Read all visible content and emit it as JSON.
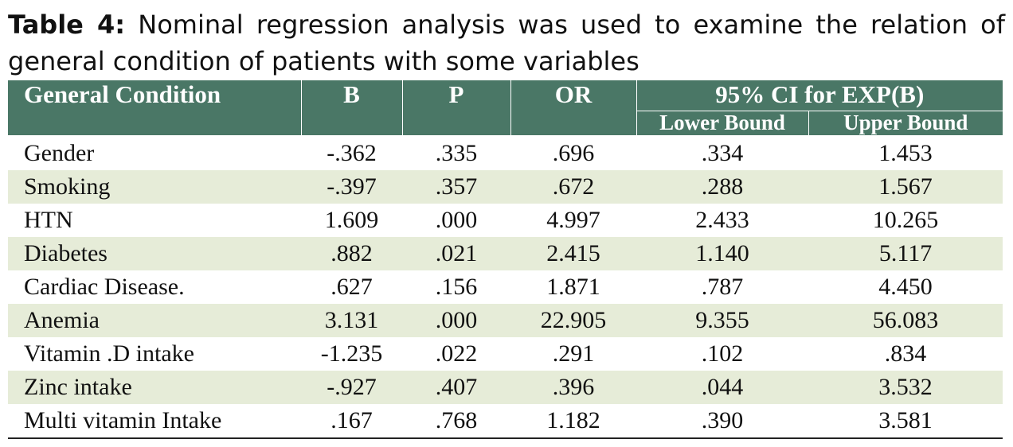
{
  "caption": {
    "label": "Table 4:",
    "text": "Nominal regression analysis was used to examine the relation of general condition of patients with some variables"
  },
  "table": {
    "headers": {
      "condition": "General Condition",
      "b": "B",
      "p": "P",
      "or": "OR",
      "ci": "95% CI for EXP(B)",
      "lower": "Lower Bound",
      "upper": "Upper Bound"
    },
    "rows": [
      {
        "name": "Gender",
        "b": "-.362",
        "p": ".335",
        "or": ".696",
        "lower": ".334",
        "upper": "1.453"
      },
      {
        "name": "Smoking",
        "b": "-.397",
        "p": ".357",
        "or": ".672",
        "lower": ".288",
        "upper": "1.567"
      },
      {
        "name": "HTN",
        "b": "1.609",
        "p": ".000",
        "or": "4.997",
        "lower": "2.433",
        "upper": "10.265"
      },
      {
        "name": "Diabetes",
        "b": ".882",
        "p": ".021",
        "or": "2.415",
        "lower": "1.140",
        "upper": "5.117"
      },
      {
        "name": "Cardiac Disease.",
        "b": ".627",
        "p": ".156",
        "or": "1.871",
        "lower": ".787",
        "upper": "4.450"
      },
      {
        "name": "Anemia",
        "b": "3.131",
        "p": ".000",
        "or": "22.905",
        "lower": "9.355",
        "upper": "56.083"
      },
      {
        "name": "Vitamin .D intake",
        "b": "-1.235",
        "p": ".022",
        "or": ".291",
        "lower": ".102",
        "upper": ".834"
      },
      {
        "name": "Zinc intake",
        "b": "-.927",
        "p": ".407",
        "or": ".396",
        "lower": ".044",
        "upper": "3.532"
      },
      {
        "name": "Multi vitamin Intake",
        "b": ".167",
        "p": ".768",
        "or": "1.182",
        "lower": ".390",
        "upper": "3.581"
      }
    ]
  },
  "colors": {
    "header_bg": "#4a7766",
    "stripe_bg": "#e6ecd8"
  }
}
